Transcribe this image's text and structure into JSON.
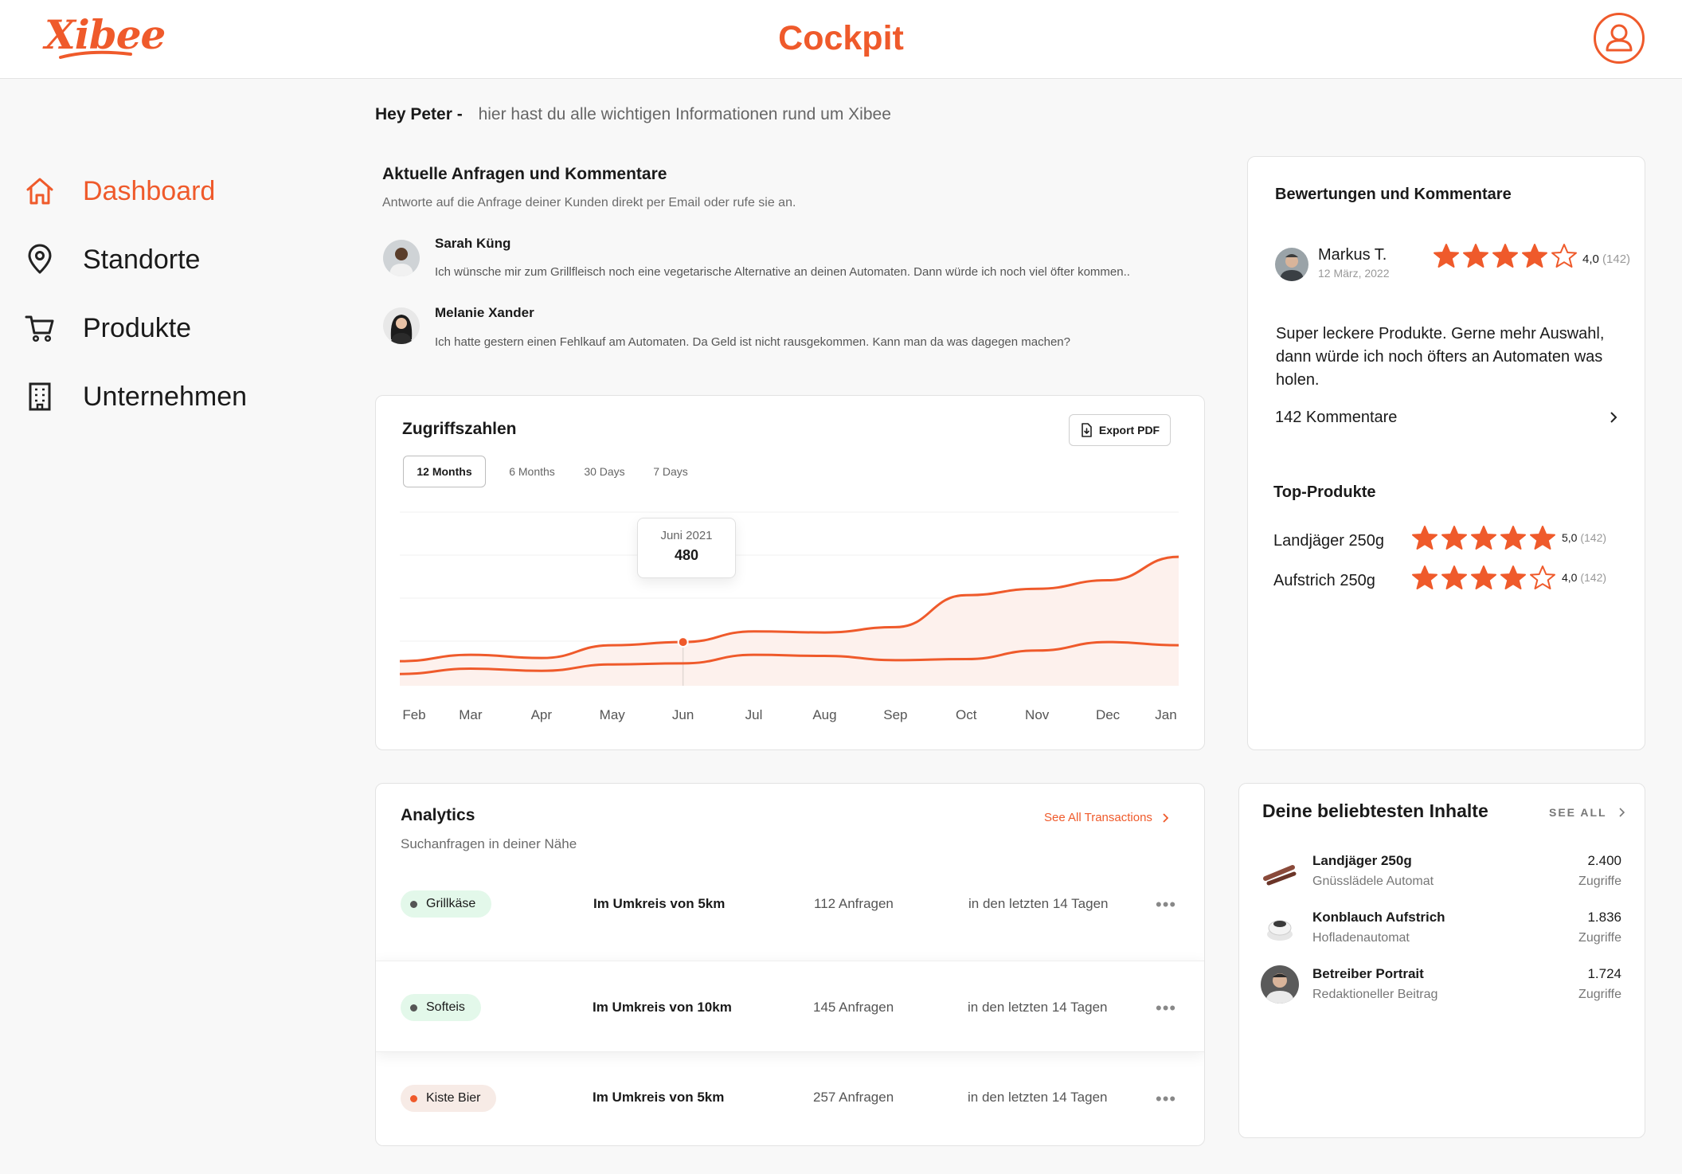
{
  "header": {
    "logo": "Xibee",
    "title": "Cockpit",
    "profile_icon": "user-icon"
  },
  "sidebar": {
    "items": [
      {
        "label": "Dashboard",
        "icon": "home-icon",
        "active": true
      },
      {
        "label": "Standorte",
        "icon": "location-pin-icon",
        "active": false
      },
      {
        "label": "Produkte",
        "icon": "shopping-cart-icon",
        "active": false
      },
      {
        "label": "Unternehmen",
        "icon": "building-icon",
        "active": false
      }
    ]
  },
  "greeting": {
    "hey": "Hey Peter -",
    "text": "hier hast du alle wichtigen Informationen rund um Xibee"
  },
  "requests": {
    "title": "Aktuelle Anfragen und Kommentare",
    "subtitle": "Antworte auf die Anfrage deiner Kunden direkt per Email oder rufe sie an.",
    "items": [
      {
        "name": "Sarah Küng",
        "text": "Ich wünsche mir zum Grillfleisch noch eine vegetarische Alternative an deinen Automaten. Dann würde ich noch viel öfter kommen.."
      },
      {
        "name": "Melanie Xander",
        "text": "Ich hatte gestern einen Fehlkauf am Automaten. Da Geld ist nicht rausgekommen. Kann man da was dagegen machen?"
      }
    ]
  },
  "access_chart": {
    "title": "Zugriffszahlen",
    "export_label": "Export PDF",
    "tabs": [
      "12 Months",
      "6 Months",
      "30 Days",
      "7 Days"
    ],
    "active_tab": "12 Months",
    "tooltip": {
      "label": "Juni 2021",
      "value": "480"
    }
  },
  "chart_data": {
    "type": "area",
    "x": [
      "Feb",
      "Mar",
      "Apr",
      "May",
      "Jun",
      "Jul",
      "Aug",
      "Sep",
      "Oct",
      "Nov",
      "Dec",
      "Jan"
    ],
    "series": [
      {
        "values": [
          390,
          420,
          405,
          465,
          480,
          530,
          525,
          550,
          700,
          730,
          770,
          880
        ]
      },
      {
        "values": [
          330,
          355,
          345,
          375,
          380,
          420,
          415,
          395,
          400,
          440,
          480,
          465
        ]
      }
    ],
    "ylim": [
      200,
      1000
    ],
    "grid": true,
    "colors": {
      "line": "#ef5a2b",
      "fill": "#fdf1ed"
    }
  },
  "analytics": {
    "title": "Analytics",
    "subtitle": "Suchanfragen in deiner Nähe",
    "see_all": "See All Transactions",
    "rows": [
      {
        "tag": "Grillkäse",
        "radius": "Im Umkreis von 5km",
        "requests": "112 Anfragen",
        "period": "in den letzten 14 Tagen",
        "tag_bg": "#e3f8ea",
        "dot": "#555555"
      },
      {
        "tag": "Softeis",
        "radius": "Im Umkreis von 10km",
        "requests": "145 Anfragen",
        "period": "in den letzten 14 Tagen",
        "tag_bg": "#e3f8ea",
        "dot": "#555555"
      },
      {
        "tag": "Kiste Bier",
        "radius": "Im Umkreis von 5km",
        "requests": "257 Anfragen",
        "period": "in den letzten 14 Tagen",
        "tag_bg": "#f7ebe6",
        "dot": "#ef5a2b"
      }
    ]
  },
  "reviews": {
    "title": "Bewertungen und Kommentare",
    "reviewer": "Markus T.",
    "date": "12 März, 2022",
    "rating": 4,
    "rating_label": "4,0",
    "rating_count": "(142)",
    "text": "Super leckere Produkte. Gerne mehr Auswahl, dann würde ich noch öfters an Automaten was holen.",
    "comments_link": "142 Kommentare",
    "top_title": "Top-Produkte",
    "top_products": [
      {
        "name": "Landjäger 250g",
        "rating": 5,
        "rating_label": "5,0",
        "count": "(142)"
      },
      {
        "name": "Aufstrich 250g",
        "rating": 4,
        "rating_label": "4,0",
        "count": "(142)"
      }
    ]
  },
  "popular": {
    "title": "Deine beliebtesten Inhalte",
    "see_all": "SEE ALL",
    "items": [
      {
        "name": "Landjäger 250g",
        "sub": "Gnüsslädele Automat",
        "value": "2.400",
        "unit": "Zugriffe"
      },
      {
        "name": "Konblauch Aufstrich",
        "sub": "Hofladenautomat",
        "value": "1.836",
        "unit": "Zugriffe"
      },
      {
        "name": "Betreiber Portrait",
        "sub": "Redaktioneller Beitrag",
        "value": "1.724",
        "unit": "Zugriffe"
      }
    ]
  },
  "colors": {
    "accent": "#ef5a2b"
  }
}
